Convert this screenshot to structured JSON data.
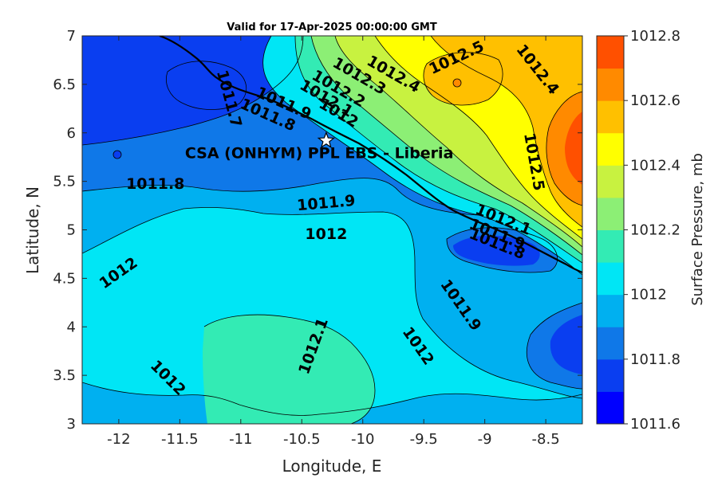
{
  "chart_data": {
    "type": "contour",
    "title": "Valid for 17-Apr-2025 00:00:00 GMT",
    "xlabel": "Longitude, E",
    "ylabel": "Latitude, N",
    "xlim": [
      -12.3,
      -8.2
    ],
    "ylim": [
      3,
      7
    ],
    "xticks": [
      "-12",
      "-11.5",
      "-11",
      "-10.5",
      "-10",
      "-9.5",
      "-9",
      "-8.5"
    ],
    "yticks": [
      "3",
      "3.5",
      "4",
      "4.5",
      "5",
      "5.5",
      "6",
      "6.5",
      "7"
    ],
    "colorbar": {
      "label": "Surface Pressure, mb",
      "range": [
        1011.6,
        1012.8
      ],
      "ticks": [
        "1011.6",
        "1011.8",
        "1012",
        "1012.2",
        "1012.4",
        "1012.6",
        "1012.8"
      ],
      "levels": [
        1011.6,
        1011.7,
        1011.8,
        1011.9,
        1012.0,
        1012.1,
        1012.2,
        1012.3,
        1012.4,
        1012.5,
        1012.6,
        1012.7,
        1012.8
      ],
      "colors": [
        "#0000ff",
        "#0a3ef0",
        "#0f78e8",
        "#00b0f0",
        "#00e6f5",
        "#33ebb4",
        "#8cef75",
        "#c8f240",
        "#ffff00",
        "#ffc000",
        "#ff8a00",
        "#ff5000",
        "#ff1000"
      ]
    },
    "site": {
      "name": "CSA (ONHYM) PPL EBS  - Liberia",
      "lon": -10.3,
      "lat": 5.92
    },
    "contour_labels": [
      {
        "text": "1011.7",
        "lon": -11.1,
        "lat": 6.35,
        "angle": 75
      },
      {
        "text": "1011.9",
        "lon": -10.65,
        "lat": 6.3,
        "angle": 24
      },
      {
        "text": "1011.8",
        "lon": -10.78,
        "lat": 6.18,
        "angle": 24
      },
      {
        "text": "1012",
        "lon": -10.2,
        "lat": 6.2,
        "angle": 30
      },
      {
        "text": "1012.1",
        "lon": -10.3,
        "lat": 6.35,
        "angle": 30
      },
      {
        "text": "1012.2",
        "lon": -10.2,
        "lat": 6.45,
        "angle": 30
      },
      {
        "text": "1012.3",
        "lon": -10.03,
        "lat": 6.58,
        "angle": 30
      },
      {
        "text": "1012.4",
        "lon": -9.75,
        "lat": 6.6,
        "angle": 30
      },
      {
        "text": "1012.5",
        "lon": -9.23,
        "lat": 6.77,
        "angle": -25
      },
      {
        "text": "1012.4",
        "lon": -8.57,
        "lat": 6.65,
        "angle": 52
      },
      {
        "text": "1012.5",
        "lon": -8.6,
        "lat": 5.7,
        "angle": 80
      },
      {
        "text": "1011.8",
        "lon": -11.7,
        "lat": 5.47,
        "angle": 0
      },
      {
        "text": "1011.9",
        "lon": -10.3,
        "lat": 5.27,
        "angle": -5
      },
      {
        "text": "1012",
        "lon": -10.3,
        "lat": 4.95,
        "angle": 0
      },
      {
        "text": "1012.1",
        "lon": -8.85,
        "lat": 5.1,
        "angle": 22
      },
      {
        "text": "1011.9",
        "lon": -8.9,
        "lat": 4.95,
        "angle": 22
      },
      {
        "text": "1011.8",
        "lon": -8.9,
        "lat": 4.85,
        "angle": 22
      },
      {
        "text": "1012",
        "lon": -12.0,
        "lat": 4.55,
        "angle": -35
      },
      {
        "text": "1011.9",
        "lon": -9.2,
        "lat": 4.22,
        "angle": 55
      },
      {
        "text": "1012",
        "lon": -9.55,
        "lat": 3.8,
        "angle": 55
      },
      {
        "text": "1012.1",
        "lon": -10.4,
        "lat": 3.8,
        "angle": -70
      },
      {
        "text": "1012",
        "lon": -11.6,
        "lat": 3.47,
        "angle": 45
      }
    ]
  }
}
